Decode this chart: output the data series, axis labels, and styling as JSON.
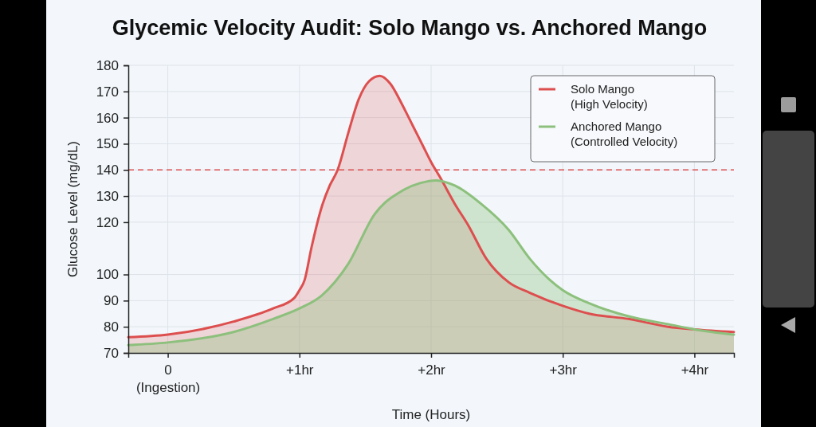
{
  "chart_data": {
    "type": "area",
    "title": "Glycemic Velocity Audit: Solo Mango vs. Anchored Mango",
    "xlabel": "Time (Hours)",
    "ylabel": "Glucose Level (mg/dL)",
    "xlim": [
      -0.3,
      4.3
    ],
    "xticks": [
      {
        "value": 0,
        "label": "0\n(Ingestion)"
      },
      {
        "value": 1,
        "label": "+1hr"
      },
      {
        "value": 2,
        "label": "+2hr"
      },
      {
        "value": 3,
        "label": "+3hr"
      },
      {
        "value": 4,
        "label": "+4hr"
      }
    ],
    "ylim": [
      70,
      180
    ],
    "yticks": [
      70,
      80,
      90,
      100,
      120,
      130,
      140,
      150,
      160,
      170,
      180
    ],
    "grid": true,
    "legend": "top right",
    "series": [
      {
        "name": "Solo Mango\n(High Velocity)",
        "color": "#dd4f4f",
        "x": [
          -0.3,
          0,
          0.5,
          0.8,
          0.96,
          1.0,
          1.04,
          1.09,
          1.17,
          1.23,
          1.29,
          1.37,
          1.45,
          1.53,
          1.61,
          1.69,
          1.78,
          1.86,
          1.94,
          2.0,
          2.07,
          2.18,
          2.28,
          2.42,
          2.59,
          2.75,
          3.0,
          3.2,
          3.5,
          3.8,
          4.0,
          4.3
        ],
        "values": [
          76,
          77,
          82,
          87,
          91,
          94,
          98,
          110,
          126,
          134,
          140,
          154,
          167,
          174,
          176,
          173,
          165,
          157,
          149,
          143,
          137,
          127,
          119,
          106,
          97,
          93,
          88,
          85,
          83,
          80,
          79,
          78
        ]
      },
      {
        "name": "Anchored Mango\n(Controlled Velocity)",
        "color": "#8cc07c",
        "x": [
          -0.3,
          0,
          0.5,
          0.8,
          1.0,
          1.17,
          1.37,
          1.57,
          1.78,
          1.92,
          2.04,
          2.18,
          2.38,
          2.59,
          2.75,
          2.9,
          3.0,
          3.2,
          3.5,
          3.8,
          4.0,
          4.3
        ],
        "values": [
          73,
          74,
          78,
          83,
          87,
          92,
          104,
          123,
          132,
          135,
          136,
          134,
          127,
          117,
          106,
          98,
          94,
          89,
          84,
          81,
          79,
          77
        ]
      }
    ],
    "ref_lines": [
      {
        "axis": "y",
        "value": 140,
        "color": "#dd4f4f",
        "line_style": "dashed"
      }
    ]
  }
}
